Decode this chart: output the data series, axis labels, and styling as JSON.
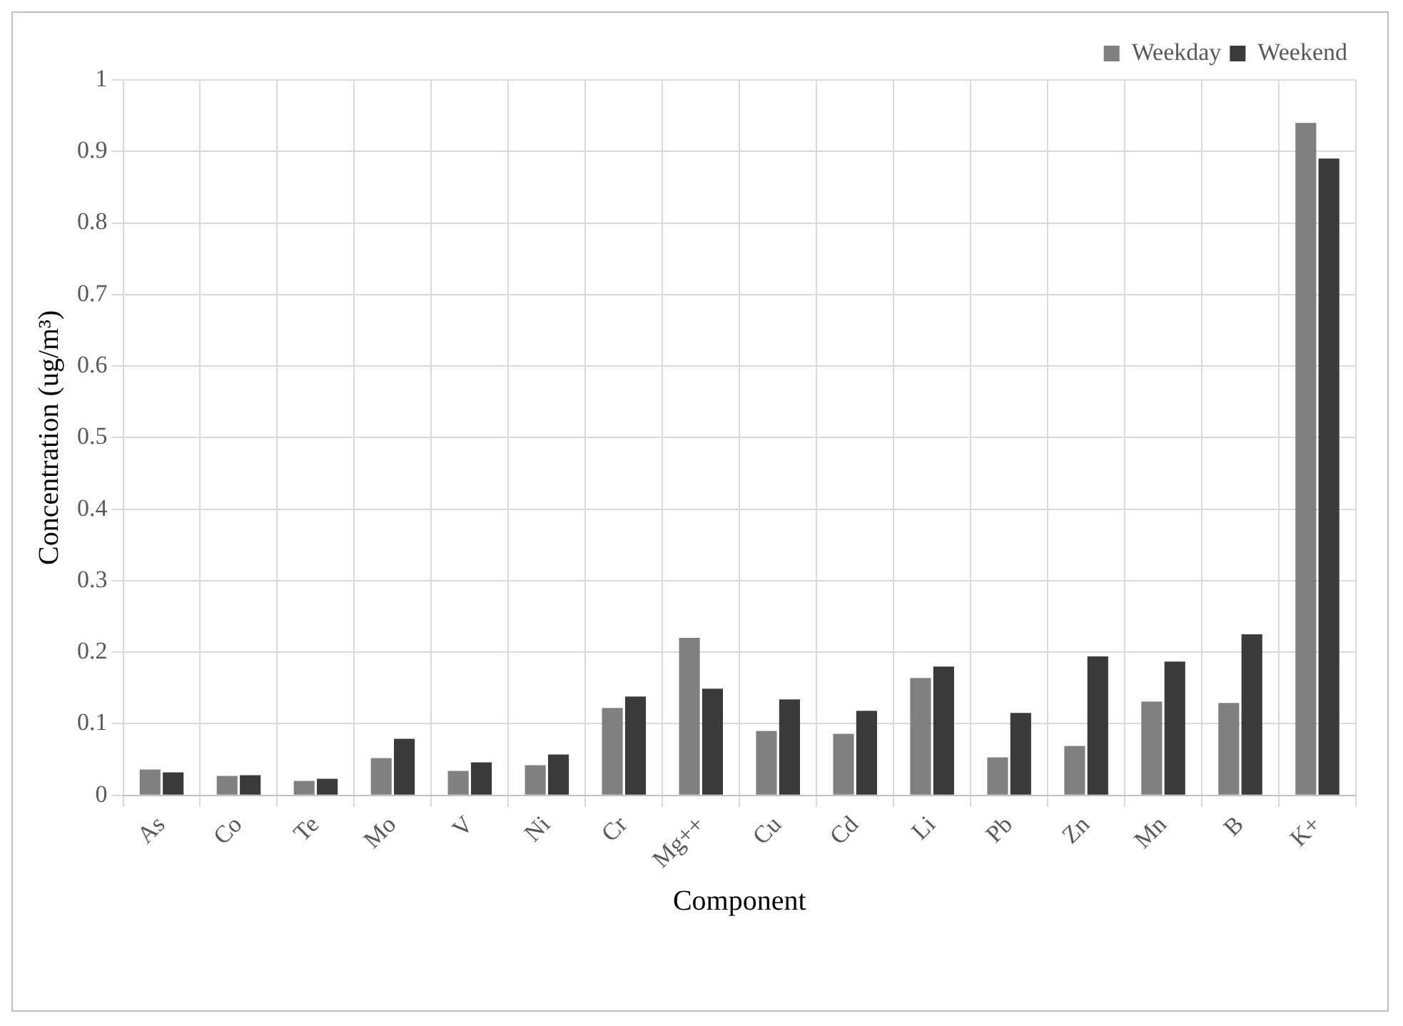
{
  "chart_data": {
    "type": "bar",
    "xlabel": "Component",
    "ylabel": "Concentration (ug/m³)",
    "categories": [
      "As",
      "Co",
      "Te",
      "Mo",
      "V",
      "Ni",
      "Cr",
      "Mg++",
      "Cu",
      "Cd",
      "Li",
      "Pb",
      "Zn",
      "Mn",
      "B",
      "K+"
    ],
    "series": [
      {
        "name": "Weekday",
        "color": "#808080",
        "values": [
          0.036,
          0.027,
          0.02,
          0.052,
          0.034,
          0.042,
          0.122,
          0.22,
          0.09,
          0.086,
          0.164,
          0.053,
          0.069,
          0.131,
          0.129,
          0.94
        ]
      },
      {
        "name": "Weekend",
        "color": "#3a3a3a",
        "values": [
          0.032,
          0.028,
          0.023,
          0.079,
          0.046,
          0.057,
          0.138,
          0.149,
          0.134,
          0.118,
          0.18,
          0.115,
          0.194,
          0.187,
          0.225,
          0.89
        ]
      }
    ],
    "ylim": [
      0,
      1
    ],
    "yticks": [
      0,
      0.1,
      0.2,
      0.3,
      0.4,
      0.5,
      0.6,
      0.7,
      0.8,
      0.9,
      1
    ],
    "grid": true,
    "legend": "top right"
  }
}
